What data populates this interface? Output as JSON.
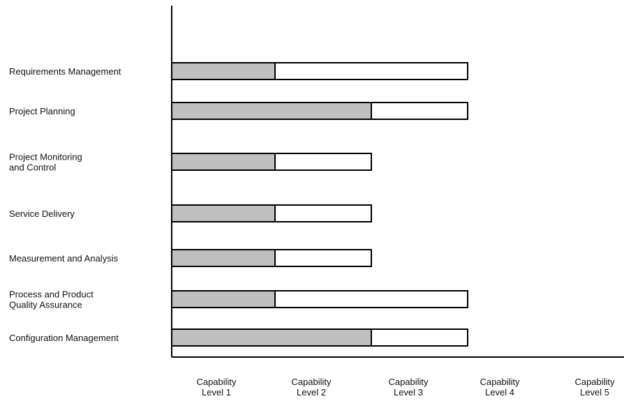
{
  "chart_data": {
    "type": "bar",
    "orientation": "horizontal",
    "title": "",
    "xlabel": "",
    "ylabel": "",
    "grid": false,
    "legend": "none",
    "colors": {
      "achieved": "#c0c0c0",
      "target": "#ffffff",
      "stroke": "#000000",
      "axis": "#000000"
    },
    "levels": [
      [
        "Capability",
        "Level 1"
      ],
      [
        "Capability",
        "Level 2"
      ],
      [
        "Capability",
        "Level 3"
      ],
      [
        "Capability",
        "Level 4"
      ],
      [
        "Capability",
        "Level 5"
      ]
    ],
    "categories": [
      [
        "Requirements Management"
      ],
      [
        "Project Planning"
      ],
      [
        "Project Monitoring",
        "and Control"
      ],
      [
        "Service Delivery"
      ],
      [
        "Measurement and Analysis"
      ],
      [
        "Process and Product",
        "Quality Assurance"
      ],
      [
        "Configuration Management"
      ]
    ],
    "series": [
      {
        "values": [
          1,
          2,
          1,
          1,
          1,
          1,
          2
        ]
      },
      {
        "values": [
          3,
          3,
          2,
          2,
          2,
          3,
          3
        ]
      }
    ],
    "xlim": [
      0,
      5
    ]
  }
}
